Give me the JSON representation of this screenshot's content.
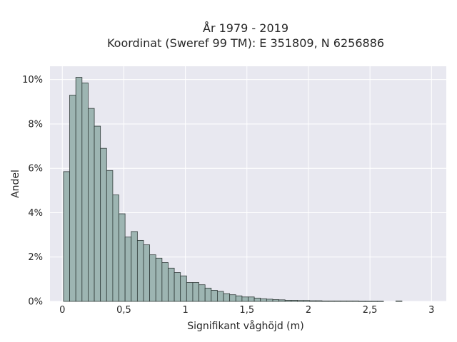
{
  "chart_data": {
    "type": "bar",
    "title_lines": [
      "År 1979 - 2019",
      "Koordinat (Sweref 99 TM): E 351809, N 6256886"
    ],
    "xlabel": "Signifikant våghöjd (m)",
    "ylabel": "Andel",
    "xlim": [
      -0.1,
      3.12
    ],
    "ylim": [
      0,
      10.6
    ],
    "x_ticks": [
      0,
      0.5,
      1,
      1.5,
      2,
      2.5,
      3
    ],
    "x_tick_labels": [
      "0",
      "0,5",
      "1",
      "1,5",
      "2",
      "2,5",
      "3"
    ],
    "y_ticks": [
      0,
      2,
      4,
      6,
      8,
      10
    ],
    "y_tick_labels": [
      "0%",
      "2%",
      "4%",
      "6%",
      "8%",
      "10%"
    ],
    "bin_width": 0.05,
    "bin_starts": [
      0.01,
      0.06,
      0.11,
      0.16,
      0.21,
      0.26,
      0.31,
      0.36,
      0.41,
      0.46,
      0.51,
      0.56,
      0.61,
      0.66,
      0.71,
      0.76,
      0.81,
      0.86,
      0.91,
      0.96,
      1.01,
      1.06,
      1.11,
      1.16,
      1.21,
      1.26,
      1.31,
      1.36,
      1.41,
      1.46,
      1.51,
      1.56,
      1.61,
      1.66,
      1.71,
      1.76,
      1.81,
      1.86,
      1.91,
      1.96,
      2.01,
      2.06,
      2.11,
      2.16,
      2.21,
      2.26,
      2.31,
      2.36,
      2.41,
      2.46,
      2.51,
      2.56,
      2.61,
      2.66,
      2.71,
      2.76
    ],
    "values": [
      5.85,
      9.3,
      10.1,
      9.85,
      8.7,
      7.9,
      6.9,
      5.9,
      4.8,
      3.95,
      2.9,
      3.15,
      2.75,
      2.55,
      2.1,
      1.95,
      1.75,
      1.5,
      1.3,
      1.15,
      0.85,
      0.85,
      0.75,
      0.6,
      0.5,
      0.45,
      0.35,
      0.3,
      0.25,
      0.2,
      0.2,
      0.15,
      0.12,
      0.1,
      0.08,
      0.07,
      0.05,
      0.05,
      0.04,
      0.04,
      0.03,
      0.03,
      0.02,
      0.02,
      0.02,
      0.02,
      0.02,
      0.02,
      0.01,
      0.01,
      0.01,
      0.01,
      0,
      0,
      0.02,
      0
    ],
    "grid": true,
    "colors": {
      "plot_background": "#e8e8f0",
      "grid": "#ffffff",
      "bar_fill": "#9db5b2",
      "bar_edge": "#2f3a38"
    }
  }
}
